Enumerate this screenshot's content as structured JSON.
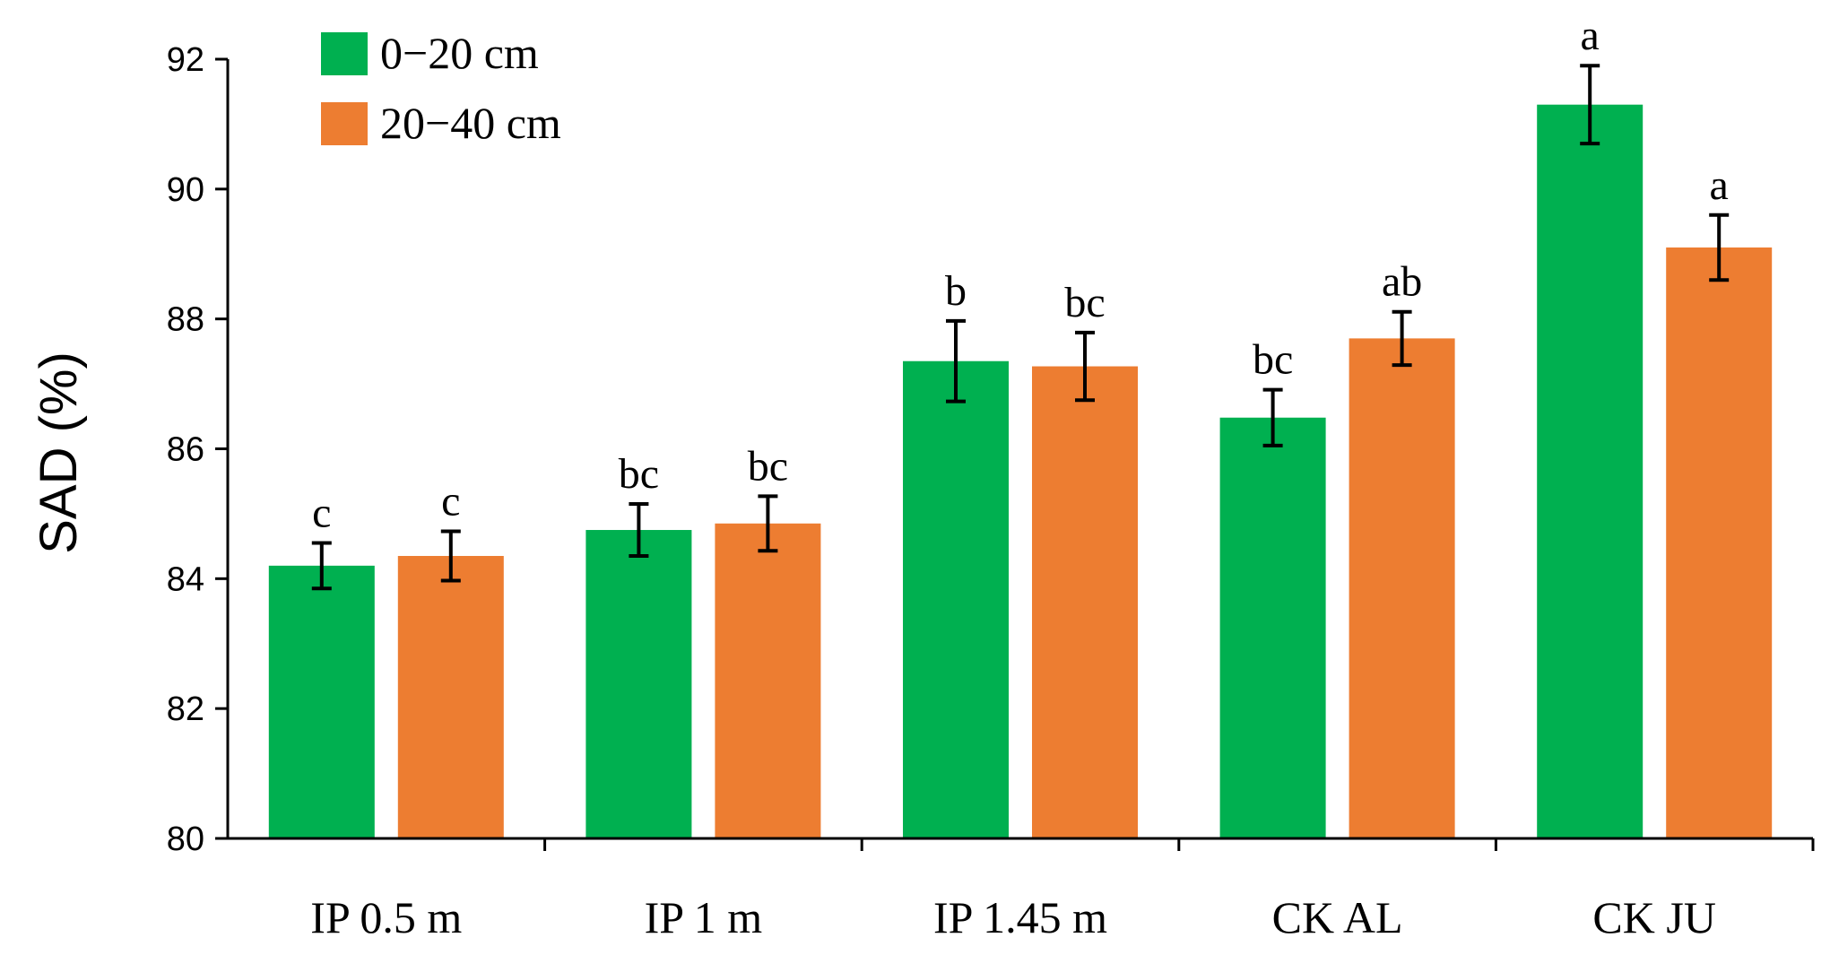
{
  "chart_data": {
    "type": "bar",
    "title": "",
    "xlabel": "",
    "ylabel": "SAD (%)",
    "ylim": [
      80,
      92
    ],
    "yticks": [
      "80",
      "82",
      "84",
      "86",
      "88",
      "90",
      "92"
    ],
    "categories": [
      "IP 0.5 m",
      "IP 1 m",
      "IP 1.45 m",
      "CK AL",
      "CK JU"
    ],
    "legend_position": "top-left",
    "series": [
      {
        "name": "0−20 cm",
        "color": "#00b050",
        "values": [
          84.2,
          84.75,
          87.35,
          86.48,
          91.3
        ],
        "errors": [
          0.35,
          0.4,
          0.62,
          0.43,
          0.6
        ],
        "labels": [
          "c",
          "bc",
          "b",
          "bc",
          "a"
        ]
      },
      {
        "name": "20−40 cm",
        "color": "#ed7d31",
        "values": [
          84.35,
          84.85,
          87.27,
          87.7,
          89.1
        ],
        "errors": [
          0.38,
          0.42,
          0.52,
          0.41,
          0.5
        ],
        "labels": [
          "c",
          "bc",
          "bc",
          "ab",
          "a"
        ]
      }
    ]
  }
}
